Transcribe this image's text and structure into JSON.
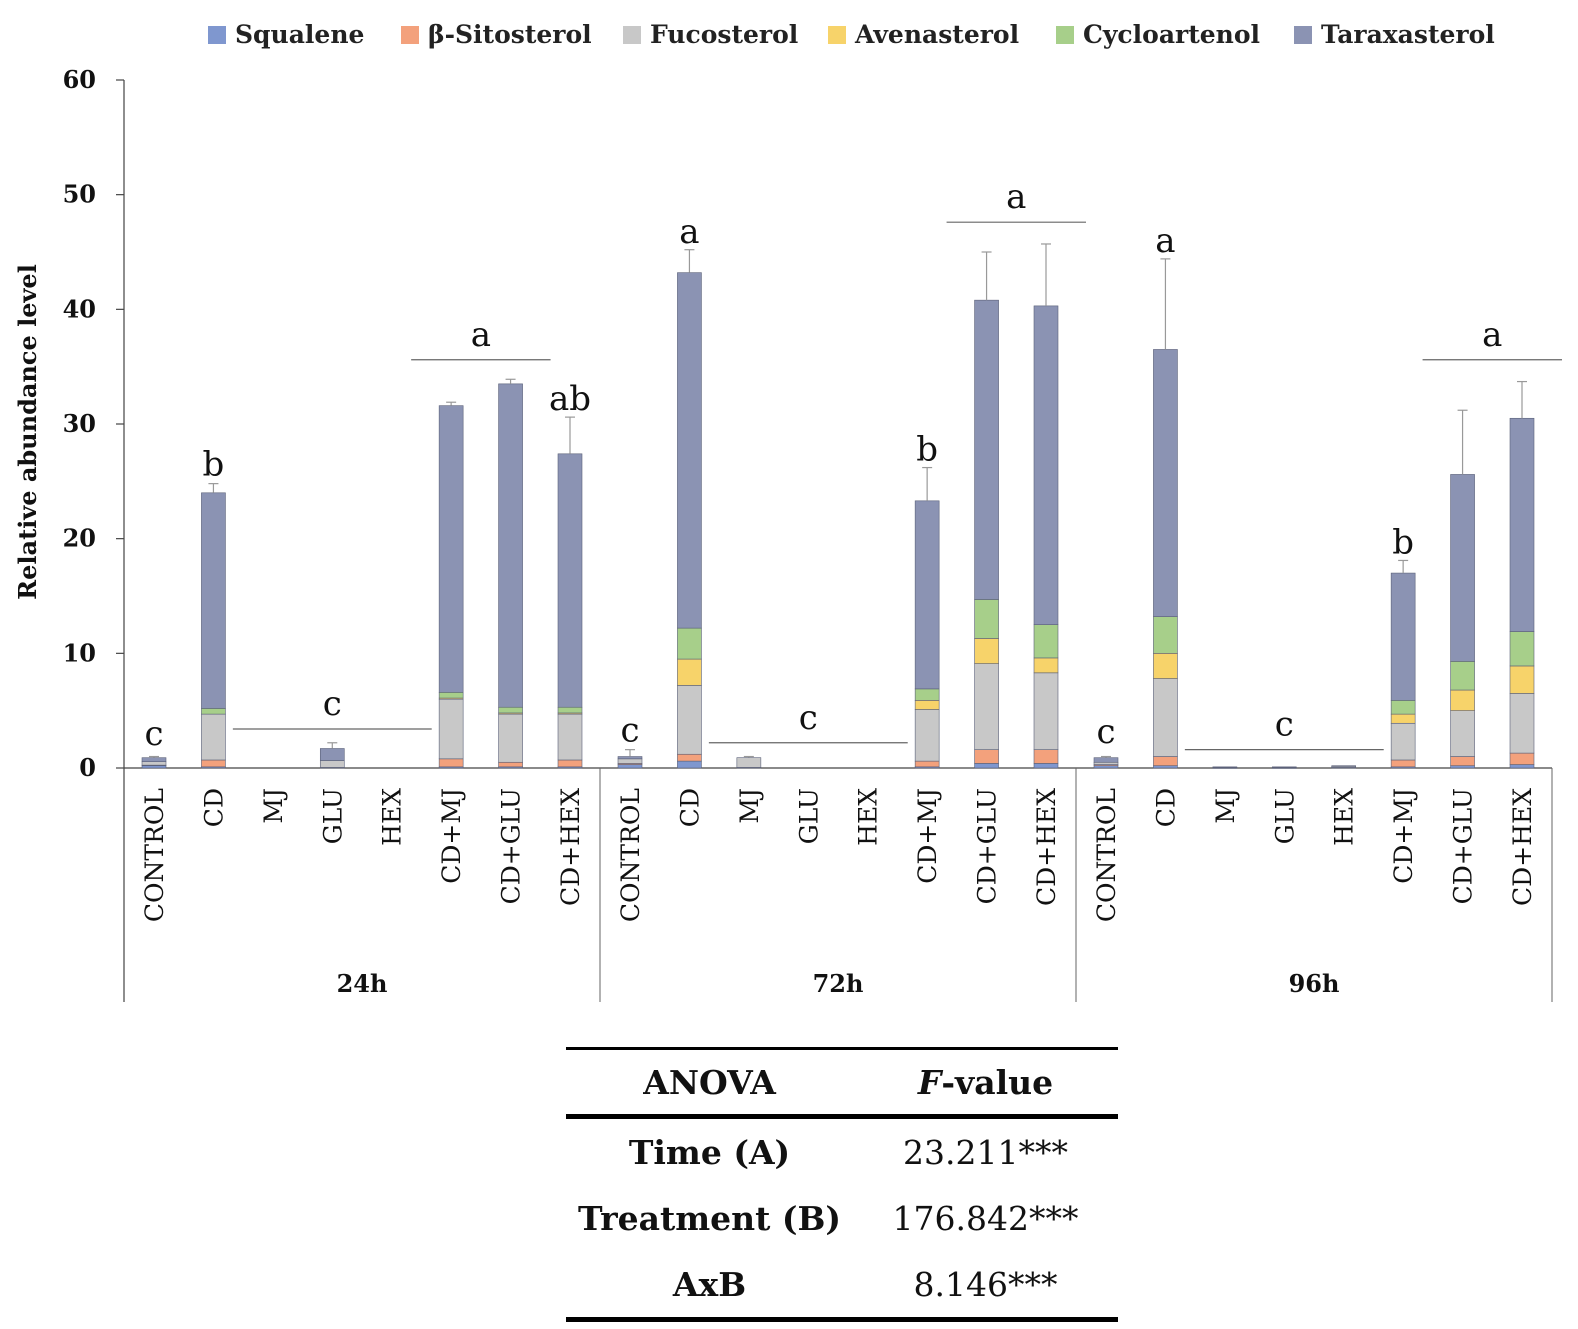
{
  "chart_data": {
    "type": "bar",
    "stacked": true,
    "ylabel": "Relative abundance level",
    "ylim": [
      0,
      60
    ],
    "yticks": [
      0,
      10,
      20,
      30,
      40,
      50,
      60
    ],
    "legend_position": "top",
    "groups": [
      {
        "label": "24h",
        "categories": [
          "CONTROL",
          "CD",
          "MJ",
          "GLU",
          "HEX",
          "CD+MJ",
          "CD+GLU",
          "CD+HEX"
        ],
        "totals": [
          0.9,
          24.0,
          0.0,
          1.7,
          0.0,
          31.6,
          33.5,
          27.4
        ],
        "errors": [
          0.1,
          0.8,
          0.0,
          0.5,
          0.0,
          0.3,
          0.4,
          3.2
        ]
      },
      {
        "label": "72h",
        "categories": [
          "CONTROL",
          "CD",
          "MJ",
          "GLU",
          "HEX",
          "CD+MJ",
          "CD+GLU",
          "CD+HEX"
        ],
        "totals": [
          1.0,
          43.2,
          0.9,
          0.0,
          0.0,
          23.3,
          40.8,
          40.3
        ],
        "errors": [
          0.6,
          2.0,
          0.1,
          0.0,
          0.0,
          2.9,
          4.2,
          5.4
        ]
      },
      {
        "label": "96h",
        "categories": [
          "CONTROL",
          "CD",
          "MJ",
          "GLU",
          "HEX",
          "CD+MJ",
          "CD+GLU",
          "CD+HEX"
        ],
        "totals": [
          0.9,
          36.5,
          0.1,
          0.1,
          0.2,
          17.0,
          25.6,
          30.5
        ],
        "errors": [
          0.1,
          7.9,
          0.0,
          0.0,
          0.0,
          1.1,
          5.6,
          3.2
        ]
      }
    ],
    "series": [
      {
        "name": "Squalene",
        "color": "#7f97cf",
        "values": [
          0.2,
          0.1,
          0,
          0.05,
          0,
          0.1,
          0.1,
          0.1,
          0.3,
          0.6,
          0.05,
          0,
          0,
          0.1,
          0.4,
          0.4,
          0.2,
          0.2,
          0.02,
          0.02,
          0.05,
          0.1,
          0.2,
          0.3
        ]
      },
      {
        "name": "β-Sitosterol",
        "color": "#f3a17c",
        "values": [
          0.05,
          0.6,
          0,
          0,
          0,
          0.7,
          0.4,
          0.6,
          0.1,
          0.6,
          0,
          0,
          0,
          0.5,
          1.2,
          1.2,
          0.1,
          0.8,
          0,
          0,
          0,
          0.6,
          0.8,
          1.0
        ]
      },
      {
        "name": "Fucosterol",
        "color": "#c8c8c8",
        "values": [
          0.3,
          4.0,
          0,
          0.6,
          0,
          5.2,
          4.2,
          4.0,
          0.4,
          6.0,
          0.85,
          0,
          0,
          4.5,
          7.5,
          6.7,
          0.2,
          6.8,
          0.05,
          0.05,
          0.1,
          3.2,
          4.0,
          5.2
        ]
      },
      {
        "name": "Avenasterol",
        "color": "#f7d36a",
        "values": [
          0,
          0,
          0,
          0,
          0,
          0.1,
          0.1,
          0.1,
          0,
          2.3,
          0,
          0,
          0,
          0.8,
          2.2,
          1.3,
          0,
          2.2,
          0,
          0,
          0,
          0.8,
          1.8,
          2.4
        ]
      },
      {
        "name": "Cycloartenol",
        "color": "#a7cf8a",
        "values": [
          0,
          0.5,
          0,
          0,
          0,
          0.5,
          0.5,
          0.5,
          0,
          2.7,
          0,
          0,
          0,
          1.0,
          3.4,
          2.9,
          0,
          3.2,
          0,
          0,
          0,
          1.2,
          2.5,
          3.0
        ]
      },
      {
        "name": "Taraxasterol",
        "color": "#8b93b3",
        "values": [
          0.35,
          18.8,
          0,
          1.05,
          0,
          25.0,
          28.2,
          22.1,
          0.2,
          31.0,
          0,
          0,
          0,
          16.4,
          26.1,
          27.8,
          0.4,
          23.3,
          0.03,
          0.03,
          0.05,
          11.1,
          16.3,
          18.6
        ]
      }
    ],
    "letters": [
      {
        "text": "c",
        "from": 0,
        "to": 0,
        "line": false,
        "y": 2.0
      },
      {
        "text": "b",
        "from": 1,
        "to": 1,
        "line": false,
        "y": 25.5
      },
      {
        "text": "c",
        "from": 2,
        "to": 4,
        "line": true,
        "y": 3.4
      },
      {
        "text": "a",
        "from": 5,
        "to": 6,
        "line": true,
        "y": 35.6
      },
      {
        "text": "ab",
        "from": 7,
        "to": 7,
        "line": false,
        "y": 31.2
      },
      {
        "text": "c",
        "from": 8,
        "to": 8,
        "line": false,
        "y": 2.3
      },
      {
        "text": "a",
        "from": 9,
        "to": 9,
        "line": false,
        "y": 45.8
      },
      {
        "text": "c",
        "from": 10,
        "to": 12,
        "line": true,
        "y": 2.2
      },
      {
        "text": "b",
        "from": 13,
        "to": 13,
        "line": false,
        "y": 26.8
      },
      {
        "text": "a",
        "from": 14,
        "to": 15,
        "line": true,
        "y": 47.6
      },
      {
        "text": "c",
        "from": 16,
        "to": 16,
        "line": false,
        "y": 2.2
      },
      {
        "text": "a",
        "from": 17,
        "to": 17,
        "line": false,
        "y": 45.0
      },
      {
        "text": "c",
        "from": 18,
        "to": 20,
        "line": true,
        "y": 1.6
      },
      {
        "text": "b",
        "from": 21,
        "to": 21,
        "line": false,
        "y": 18.7
      },
      {
        "text": "a",
        "from": 22,
        "to": 23,
        "line": true,
        "y": 35.6
      }
    ]
  },
  "anova": {
    "header_factor": "ANOVA",
    "header_value_italic": "F",
    "header_value_rest": "-value",
    "rows": [
      {
        "factor": "Time (A)",
        "value": "23.211***"
      },
      {
        "factor": "Treatment (B)",
        "value": "176.842***"
      },
      {
        "factor": "AxB",
        "value": "8.146***"
      }
    ]
  }
}
